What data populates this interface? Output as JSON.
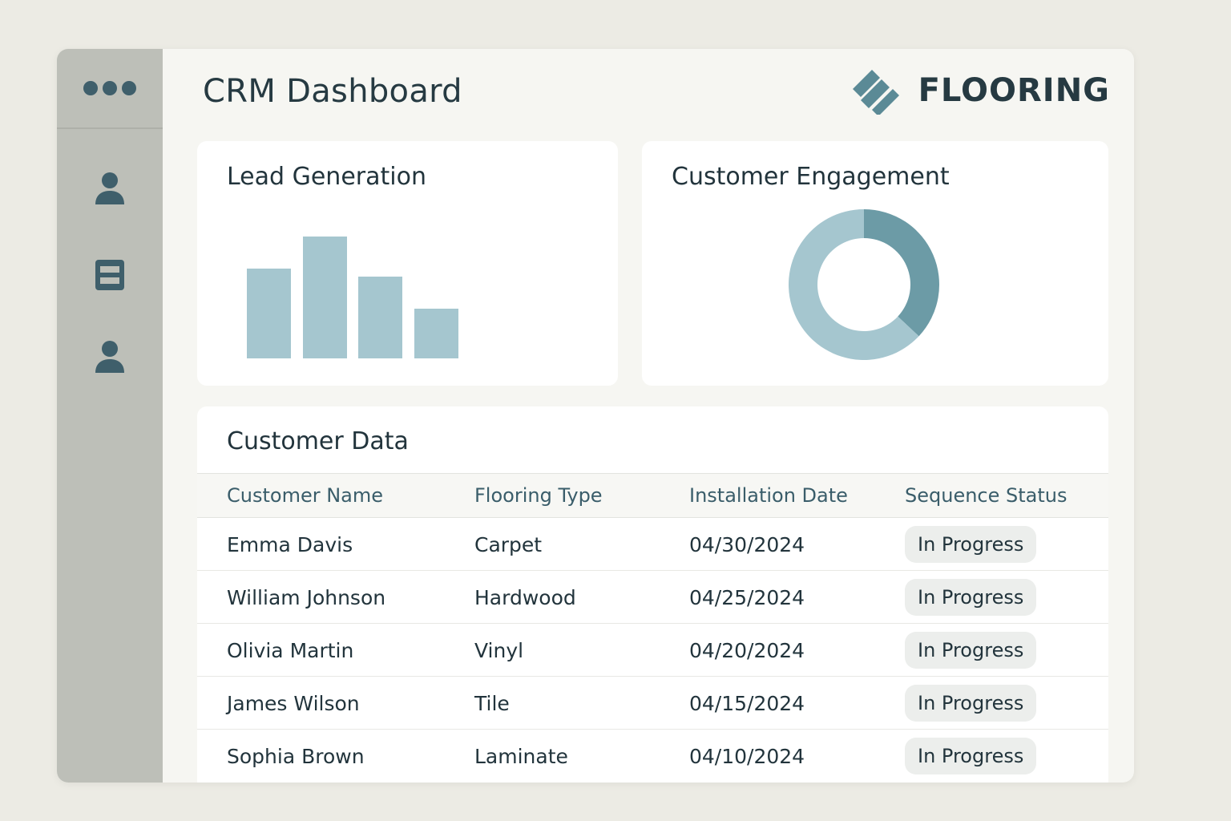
{
  "header": {
    "title": "CRM Dashboard",
    "brand_name": "FLOORING",
    "brand_logo": "stacked-planks-logo"
  },
  "sidebar": {
    "menu": "three-dots-icon",
    "items": [
      {
        "icon": "user-icon"
      },
      {
        "icon": "list-icon"
      },
      {
        "icon": "contact-icon"
      }
    ]
  },
  "lead_generation": {
    "title": "Lead Generation"
  },
  "customer_engagement": {
    "title": "Customer Engagement"
  },
  "chart_data": [
    {
      "type": "bar",
      "title": "Lead Generation",
      "categories": [
        "",
        "",
        "",
        ""
      ],
      "values": [
        115,
        156,
        105,
        64
      ],
      "ylim": [
        0,
        160
      ],
      "grid": false,
      "color": "#a5c6cf"
    },
    {
      "type": "pie",
      "title": "Customer Engagement",
      "donut": true,
      "values": [
        37,
        63
      ],
      "colors": [
        "#6c9ba6",
        "#a5c6cf"
      ]
    }
  ],
  "customer_data": {
    "title": "Customer Data",
    "columns": [
      "Customer Name",
      "Flooring Type",
      "Installation Date",
      "Sequence Status"
    ],
    "rows": [
      {
        "name": "Emma Davis",
        "type": "Carpet",
        "date": "04/30/2024",
        "status": "In Progress"
      },
      {
        "name": "William Johnson",
        "type": "Hardwood",
        "date": "04/25/2024",
        "status": "In Progress"
      },
      {
        "name": "Olivia Martin",
        "type": "Vinyl",
        "date": "04/20/2024",
        "status": "In Progress"
      },
      {
        "name": "James Wilson",
        "type": "Tile",
        "date": "04/15/2024",
        "status": "In Progress"
      },
      {
        "name": "Sophia Brown",
        "type": "Laminate",
        "date": "04/10/2024",
        "status": "In Progress"
      }
    ]
  },
  "colors": {
    "accent": "#3f5f6b",
    "bar": "#a5c6cf",
    "donut_dark": "#6c9ba6",
    "sidebar": "#bdbfb8"
  }
}
